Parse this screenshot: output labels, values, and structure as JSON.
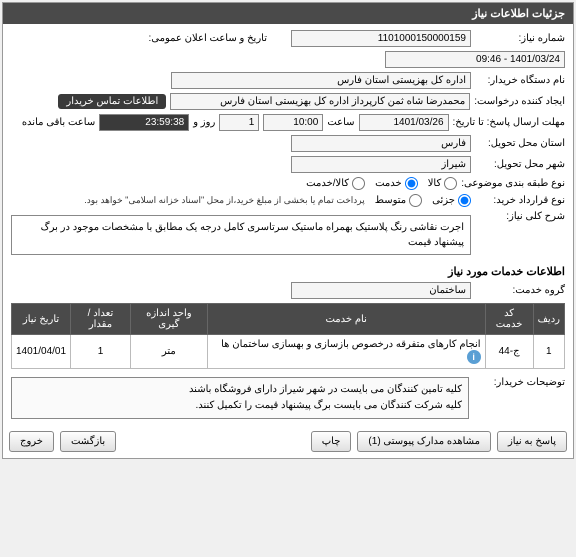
{
  "panel": {
    "title": "جزئیات اطلاعات نیاز"
  },
  "fields": {
    "need_no_label": "شماره نیاز:",
    "need_no": "1101000150000159",
    "announce_date_label": "تاریخ و ساعت اعلان عمومی:",
    "announce_date": "1401/03/24 - 09:46",
    "buyer_org_label": "نام دستگاه خریدار:",
    "buyer_org": "اداره کل بهزیستی استان فارس",
    "requester_label": "ایجاد کننده درخواست:",
    "requester": "محمدرضا شاه ثمن کارپرداز اداره کل بهزیستی استان فارس",
    "contact_btn": "اطلاعات تماس خریدار",
    "deadline_label": "مهلت ارسال پاسخ: تا تاریخ:",
    "deadline_date": "1401/03/26",
    "time_lbl": "ساعت",
    "deadline_time": "10:00",
    "day_lbl": "روز و",
    "days": "1",
    "countdown": "23:59:38",
    "remaining_lbl": "ساعت باقی مانده",
    "province_label": "استان محل تحویل:",
    "province": "فارس",
    "city_label": "شهر محل تحویل:",
    "city": "شیراز",
    "subject_type_label": "نوع طبقه بندی موضوعی:",
    "payment_type_label": "نوع قرارداد خرید:",
    "payment_note": "پرداخت تمام یا بخشی از مبلغ خرید،از محل \"اسناد خزانه اسلامی\" خواهد بود.",
    "desc_label": "شرح کلی نیاز:",
    "desc_text": "اجرت نقاشی رنگ پلاستیک بهمراه ماستیک سرتاسری کامل درجه یک مطابق با مشخصات موجود در برگ پیشنهاد قیمت",
    "services_info_title": "اطلاعات خدمات مورد نیاز",
    "service_group_label": "گروه خدمت:",
    "service_group": "ساختمان",
    "buyer_notes_label": "توضیحات خریدار:",
    "buyer_notes_l1": "کلیه تامین کنندگان می بایست در شهر شیراز دارای فروشگاه باشند",
    "buyer_notes_l2": "کلیه شرکت کنندگان می بایست برگ پیشنهاد قیمت را تکمیل کنند."
  },
  "radios": {
    "subject": {
      "o1": "کالا",
      "o2": "خدمت",
      "o3": "کالا/خدمت",
      "selected": 2
    },
    "payment": {
      "o1": "جزئی",
      "o2": "متوسط",
      "selected": 1
    }
  },
  "table": {
    "cols": {
      "c1": "ردیف",
      "c2": "کد خدمت",
      "c3": "نام خدمت",
      "c4": "واحد اندازه گیری",
      "c5": "تعداد / مقدار",
      "c6": "تاریخ نیاز"
    },
    "row": {
      "idx": "1",
      "code": "ج-44",
      "name": "انجام کارهای متفرقه درخصوص بازسازی و بهسازی ساختمان ها",
      "unit": "متر",
      "qty": "1",
      "date": "1401/04/01"
    }
  },
  "buttons": {
    "reply": "پاسخ به نیاز",
    "attach": "مشاهده مدارک پیوستی (1)",
    "print": "چاپ",
    "back": "بازگشت",
    "exit": "خروج"
  }
}
